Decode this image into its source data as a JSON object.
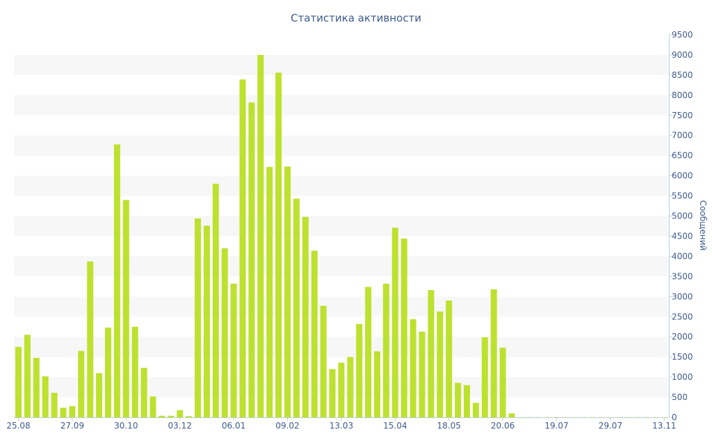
{
  "chart_data": {
    "type": "bar",
    "title": "Статистика активности",
    "xlabel": "",
    "ylabel": "Сообщений",
    "ylim": [
      0,
      9500
    ],
    "ytick_step": 500,
    "ygrid": "alternating bands",
    "yaxis_position": "right",
    "legend": "none",
    "x_tick_labels": [
      "25.08",
      "27.09",
      "30.10",
      "03.12",
      "06.01",
      "09.02",
      "13.03",
      "15.04",
      "18.05",
      "20.06",
      "19.07",
      "29.07",
      "13.11"
    ],
    "x_tick_label_bar_index": [
      0,
      6,
      12,
      18,
      24,
      30,
      36,
      42,
      48,
      54,
      60,
      66,
      72
    ],
    "values": [
      1750,
      2050,
      1480,
      1020,
      610,
      240,
      280,
      1650,
      3870,
      1100,
      2230,
      6780,
      5400,
      2250,
      1230,
      520,
      40,
      40,
      180,
      30,
      4940,
      4760,
      5800,
      4200,
      3320,
      8390,
      7820,
      9000,
      6220,
      8560,
      6230,
      5430,
      4980,
      4140,
      2770,
      1200,
      1360,
      1500,
      2320,
      3240,
      1640,
      3320,
      4710,
      4440,
      2440,
      2130,
      3160,
      2630,
      2900,
      860,
      800,
      360,
      1990,
      3180,
      1730,
      100,
      5,
      5,
      5,
      5,
      5,
      5,
      5,
      5,
      5,
      5,
      5,
      5,
      5,
      5,
      5,
      5,
      5
    ],
    "colors": {
      "bar": "#bde12f",
      "band": "#f7f7f7",
      "axis": "#3d5a8c",
      "axis_line": "#c0d0e0",
      "title": "#3d5a8c"
    }
  }
}
